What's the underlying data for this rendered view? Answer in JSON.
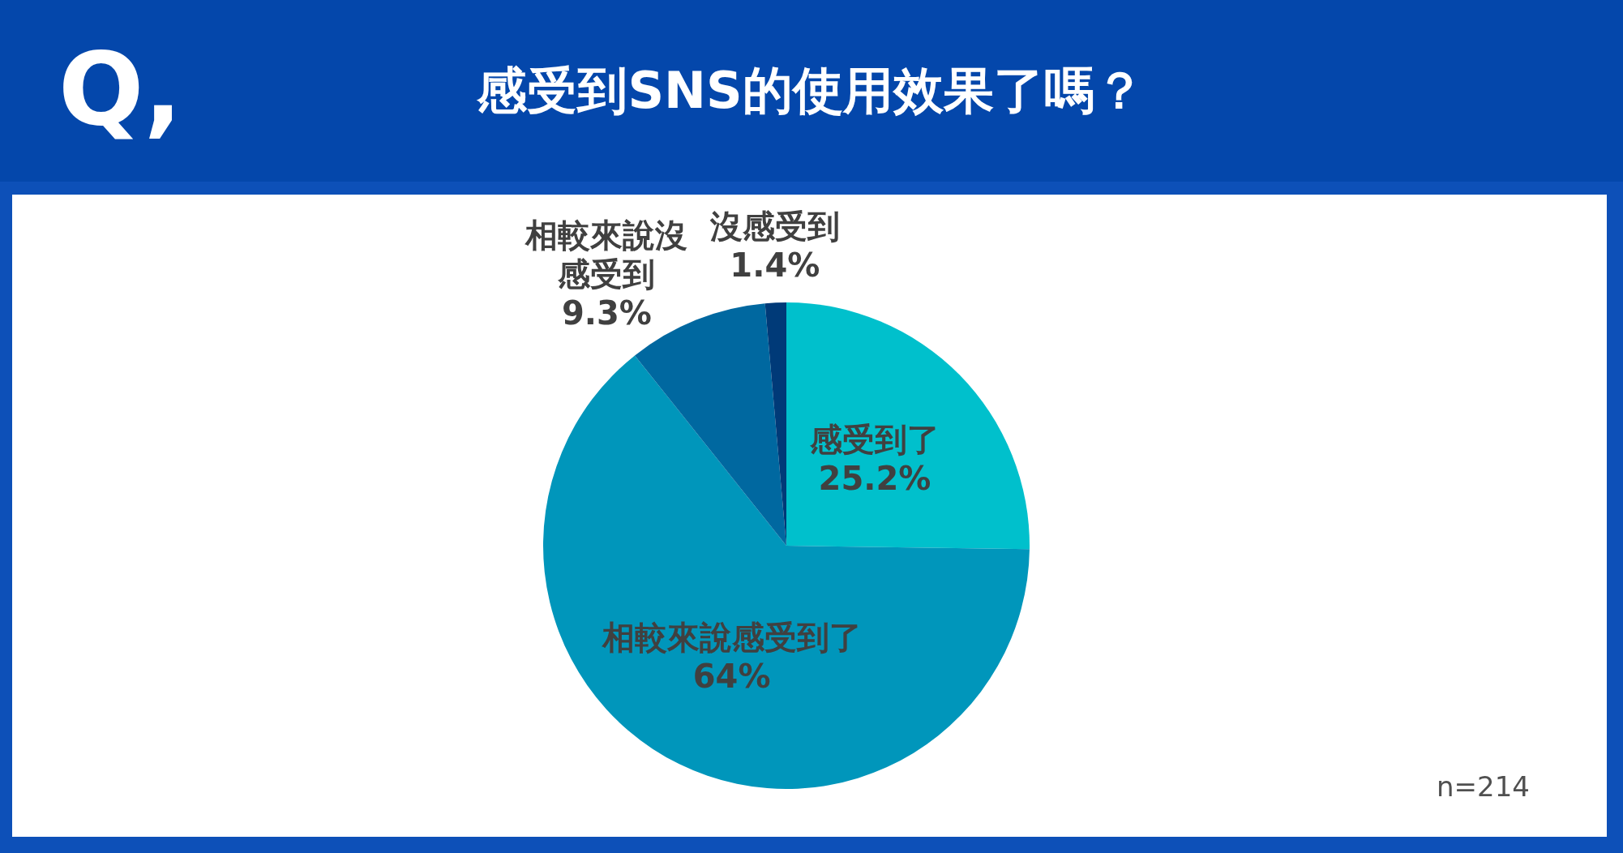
{
  "chart_data": {
    "type": "pie",
    "title": "感受到SNS的使用效果了嗎？",
    "categories": [
      "感受到了",
      "相較來說感受到了",
      "相較來說沒感受到",
      "沒感受到"
    ],
    "values": [
      25.2,
      64,
      9.3,
      1.4
    ],
    "colors": [
      "#00c0cc",
      "#0096bb",
      "#0068a0",
      "#003a78"
    ],
    "value_labels": [
      "25.2%",
      "64%",
      "9.3%",
      "1.4%"
    ],
    "annotations": [
      "Q,",
      "n=214"
    ],
    "legend": false
  }
}
